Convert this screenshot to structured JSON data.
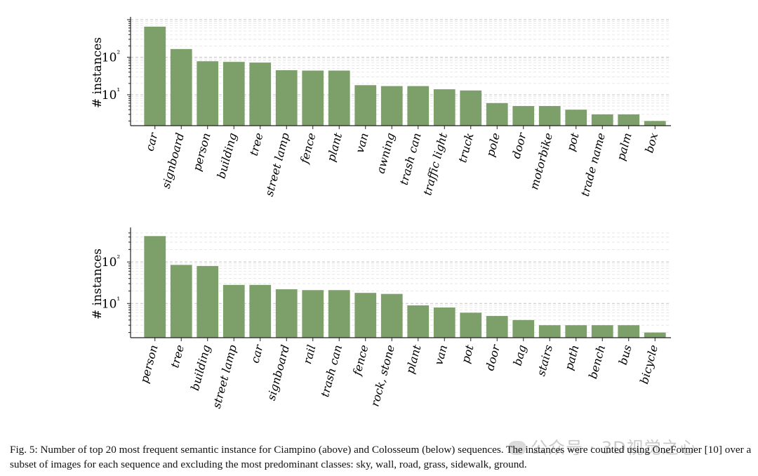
{
  "chart_data": [
    {
      "type": "bar",
      "name": "ciampino",
      "yscale": "log",
      "ylabel": "# instances",
      "ylim": [
        1.5,
        1000
      ],
      "ytick_values": [
        10,
        100
      ],
      "ytick_labels": [
        "10¹",
        "10²"
      ],
      "grid": "horizontal-dashed",
      "color": "#7d9f6a",
      "categories": [
        "car",
        "signboard",
        "person",
        "building",
        "tree",
        "street lamp",
        "fence",
        "plant",
        "van",
        "awning",
        "trash can",
        "traffic light",
        "truck",
        "pole",
        "door",
        "motorbike",
        "pot",
        "trade name",
        "palm",
        "box"
      ],
      "values": [
        650,
        165,
        78,
        75,
        72,
        45,
        44,
        44,
        18,
        17,
        17,
        14,
        13,
        6,
        5,
        5,
        4,
        3,
        3,
        2
      ]
    },
    {
      "type": "bar",
      "name": "colosseum",
      "yscale": "log",
      "ylabel": "# instances",
      "ylim": [
        1.5,
        580
      ],
      "ytick_values": [
        10,
        100
      ],
      "ytick_labels": [
        "10¹",
        "10²"
      ],
      "grid": "horizontal-dashed",
      "color": "#7d9f6a",
      "categories": [
        "person",
        "tree",
        "building",
        "street lamp",
        "car",
        "signboard",
        "rail",
        "trash can",
        "fence",
        "rock, stone",
        "plant",
        "van",
        "pot",
        "door",
        "bag",
        "stairs",
        "path",
        "bench",
        "bus",
        "bicycle"
      ],
      "values": [
        420,
        85,
        80,
        28,
        28,
        22,
        21,
        21,
        18,
        17,
        9,
        8,
        6,
        5,
        4,
        3,
        3,
        3,
        3,
        2
      ]
    }
  ],
  "caption": "Fig. 5: Number of top 20 most frequent semantic instance for Ciampino (above) and Colosseum (below) sequences. The instances were counted using OneFormer [10] over a subset of images for each sequence and excluding the most predominant classes: sky, wall, road, grass, sidewalk, ground.",
  "watermark": "公众号 · 3D视觉之心"
}
